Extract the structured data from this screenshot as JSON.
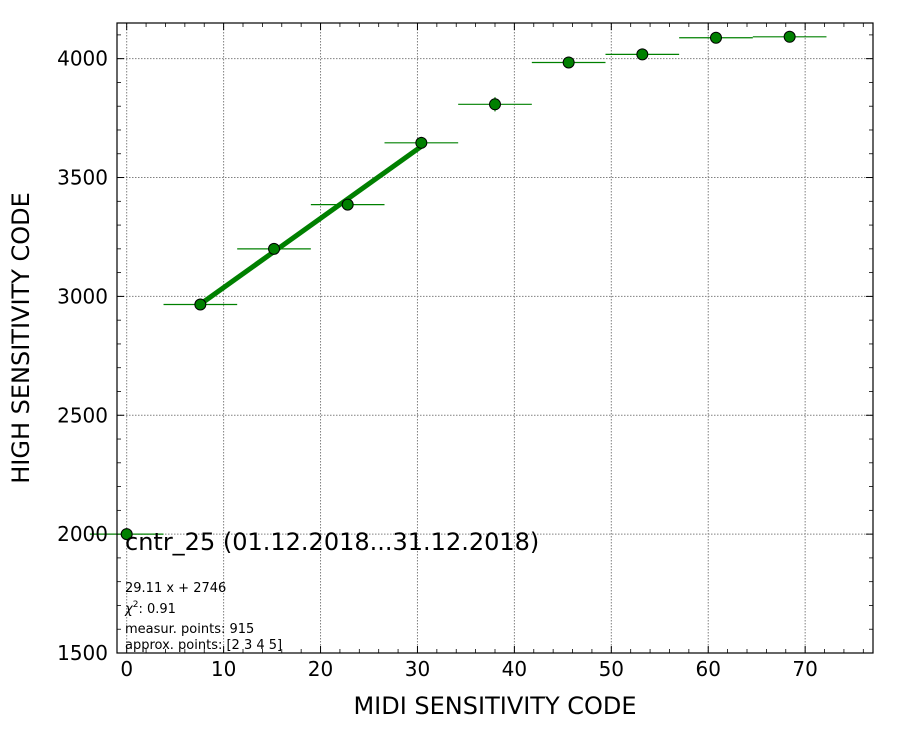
{
  "chart_data": {
    "type": "scatter",
    "title": "cntr_25 (01.12.2018...31.12.2018)",
    "xlabel": "MIDI SENSITIVITY CODE",
    "ylabel": "HIGH SENSITIVITY CODE",
    "xlim": [
      -1,
      77
    ],
    "ylim": [
      1500,
      4150
    ],
    "xticks": [
      0,
      10,
      20,
      30,
      40,
      50,
      60,
      70
    ],
    "yticks": [
      1500,
      2000,
      2500,
      3000,
      3500,
      4000
    ],
    "xtick_labels": [
      "0",
      "10",
      "20",
      "30",
      "40",
      "50",
      "60",
      "70"
    ],
    "ytick_labels": [
      "1500",
      "2000",
      "2500",
      "3000",
      "3500",
      "4000"
    ],
    "grid": true,
    "colors": {
      "marker": "#008000",
      "errorbar": "#008000",
      "fit": "#008000",
      "grid": "#808080"
    },
    "series": [
      {
        "type": "errorbar",
        "x": [
          0,
          7.6,
          15.2,
          22.8,
          30.4,
          38.0,
          45.6,
          53.2,
          60.8,
          68.4
        ],
        "y": [
          2000,
          2966,
          3200,
          3386,
          3646,
          3808,
          3984,
          4018,
          4088,
          4092
        ],
        "xerr": [
          3.8,
          3.8,
          3.8,
          3.8,
          3.8,
          3.8,
          3.8,
          3.8,
          3.8,
          3.8
        ],
        "yerr": [
          5,
          5,
          12,
          12,
          25,
          30,
          12,
          18,
          12,
          8
        ]
      },
      {
        "type": "fit_line",
        "x": [
          7.6,
          30.4
        ],
        "y": [
          2967.2,
          3631.0
        ]
      }
    ],
    "annotations": {
      "fit_equation": "29.11 x + 2746",
      "chi2_label": "χ",
      "chi2_sup": "2",
      "chi2_value": ": 0.91",
      "measured": "measur. points: 915",
      "approx": "approx. points: [2 3 4 5]"
    }
  }
}
